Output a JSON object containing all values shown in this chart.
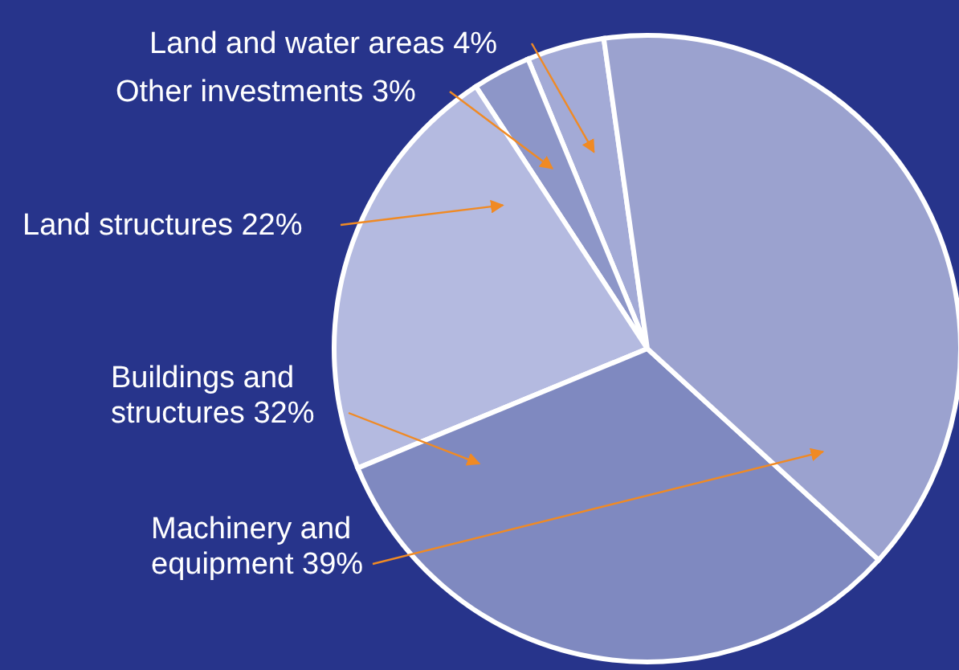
{
  "chart_data": {
    "type": "pie",
    "categories": [
      "Land and water areas",
      "Other investments",
      "Land structures",
      "Buildings and structures",
      "Machinery and equipment"
    ],
    "values": [
      4,
      3,
      22,
      32,
      39
    ],
    "value_labels": [
      "4%",
      "3%",
      "22%",
      "32%",
      "39%"
    ],
    "colors": [
      "#a3aad6",
      "#8d96c8",
      "#b4bae0",
      "#7f89c0",
      "#9ba2cf"
    ]
  }
}
